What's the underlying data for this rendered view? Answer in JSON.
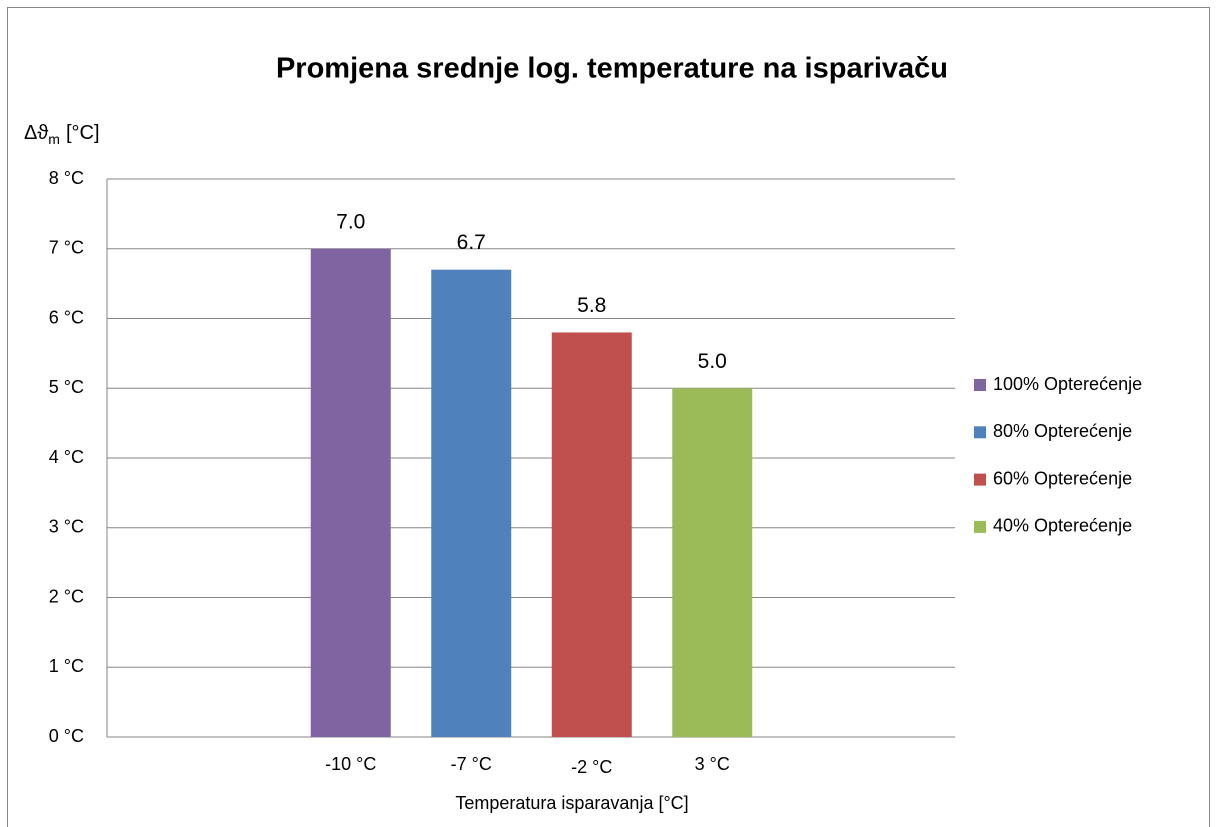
{
  "chart_data": {
    "type": "bar",
    "title": "Promjena srednje log. temperature na isparivaču",
    "y_label": "Δϑ",
    "y_label_sub": "m",
    "y_label_unit": "[°C]",
    "x_label": "Temperatura isparavanja [°C]",
    "categories": [
      "-10 °C",
      "-7 °C",
      "-2 °C",
      "3 °C"
    ],
    "series": [
      {
        "name": "100% Opterećenje",
        "color": "#8064a2",
        "values": [
          7.0,
          null,
          null,
          null
        ],
        "value_labels": [
          "7.0",
          null,
          null,
          null
        ]
      },
      {
        "name": "80% Opterećenje",
        "color": "#4f81bd",
        "values": [
          null,
          6.7,
          null,
          null
        ],
        "value_labels": [
          null,
          "6.7",
          null,
          null
        ]
      },
      {
        "name": "60% Opterećenje",
        "color": "#c0504d",
        "values": [
          null,
          null,
          5.8,
          null
        ],
        "value_labels": [
          null,
          null,
          "5.8",
          null
        ]
      },
      {
        "name": "40% Opterećenje",
        "color": "#9bbb59",
        "values": [
          null,
          null,
          null,
          5.0
        ],
        "value_labels": [
          null,
          null,
          null,
          "5.0"
        ]
      }
    ],
    "ylim": [
      0,
      8
    ],
    "yticks": [
      {
        "value": 0,
        "label": "0 °C"
      },
      {
        "value": 1,
        "label": "1 °C"
      },
      {
        "value": 2,
        "label": "2 °C"
      },
      {
        "value": 3,
        "label": "3 °C"
      },
      {
        "value": 4,
        "label": "4 °C"
      },
      {
        "value": 5,
        "label": "5 °C"
      },
      {
        "value": 6,
        "label": "6 °C"
      },
      {
        "value": 7,
        "label": "7 °C"
      },
      {
        "value": 8,
        "label": "8 °C"
      }
    ],
    "grid": true,
    "legend": "right"
  }
}
